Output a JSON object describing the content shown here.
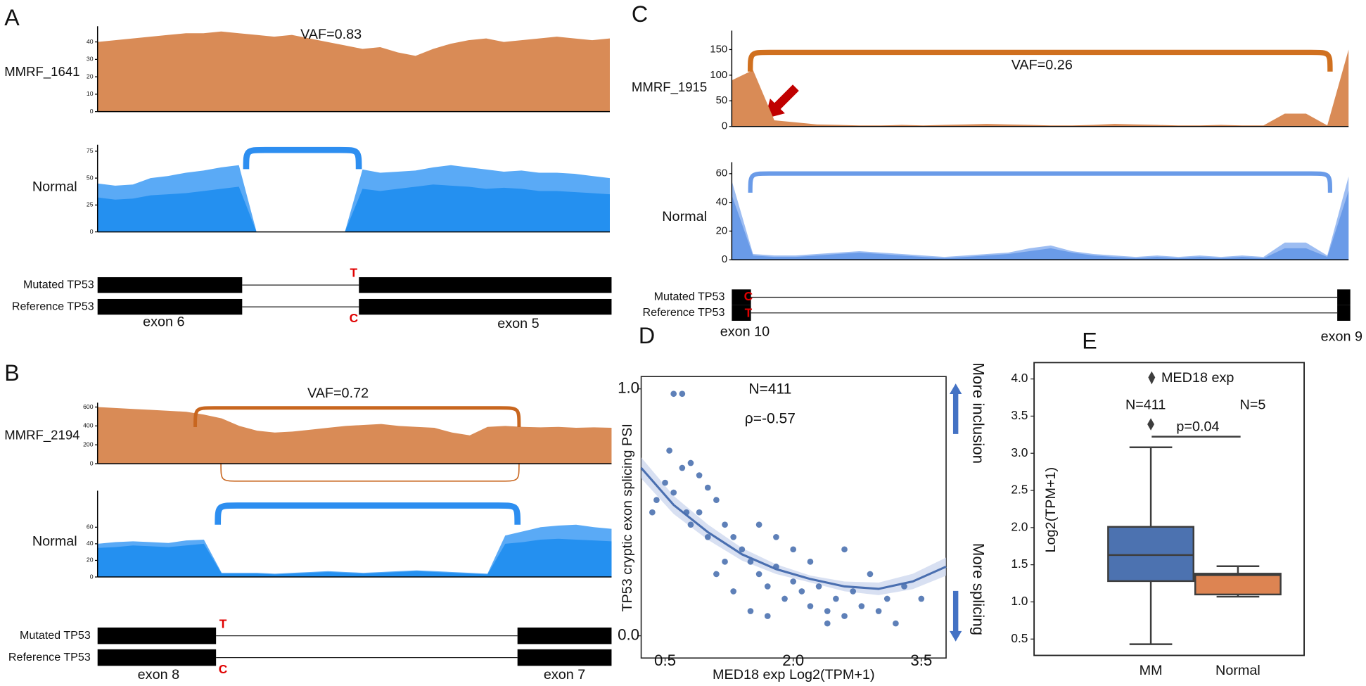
{
  "chart_data": [
    {
      "type": "area",
      "panel": "A",
      "name": "MMRF_1641",
      "annotation": "VAF=0.83",
      "ylim": [
        0,
        49
      ],
      "yticks": [
        0,
        10,
        20,
        30,
        40
      ],
      "series": [
        {
          "color": "#d98b56",
          "values": [
            40,
            41,
            42,
            43,
            44,
            45,
            45,
            46,
            45,
            44,
            43,
            44,
            42,
            40,
            38,
            36,
            37,
            34,
            32,
            36,
            39,
            41,
            42,
            40,
            41,
            42,
            43,
            42,
            41,
            42
          ]
        }
      ]
    },
    {
      "type": "area",
      "name": "Normal",
      "ylim": [
        0,
        81
      ],
      "yticks": [
        0,
        25,
        50,
        75
      ],
      "series": [
        {
          "color": "#5aaaf6",
          "values": [
            45,
            43,
            44,
            50,
            52,
            55,
            57,
            60,
            62,
            0,
            0,
            0,
            0,
            0,
            0,
            58,
            55,
            56,
            57,
            60,
            62,
            60,
            58,
            56,
            57,
            55,
            55,
            54,
            52,
            50
          ]
        },
        {
          "color": "#2490f0",
          "values": [
            32,
            30,
            31,
            34,
            35,
            36,
            38,
            40,
            42,
            0,
            0,
            0,
            0,
            0,
            0,
            40,
            38,
            40,
            42,
            44,
            43,
            42,
            40,
            41,
            40,
            38,
            38,
            37,
            36,
            35
          ]
        }
      ]
    },
    {
      "type": "area",
      "panel": "B",
      "name": "MMRF_2194",
      "annotation": "VAF=0.72",
      "ylim": [
        0,
        646
      ],
      "yticks": [
        0,
        200,
        400,
        600
      ],
      "series": [
        {
          "color": "#d98b56",
          "values": [
            600,
            590,
            580,
            570,
            560,
            550,
            520,
            480,
            400,
            350,
            330,
            340,
            360,
            380,
            400,
            410,
            420,
            400,
            390,
            380,
            330,
            300,
            390,
            400,
            390,
            385,
            390,
            380,
            385,
            380
          ]
        }
      ]
    },
    {
      "type": "area",
      "name": "Normal",
      "ylim": [
        0,
        104
      ],
      "yticks": [
        0,
        20,
        40,
        60
      ],
      "series": [
        {
          "color": "#5aaaf6",
          "values": [
            40,
            42,
            43,
            42,
            41,
            44,
            45,
            5,
            5,
            5,
            4,
            5,
            6,
            7,
            6,
            5,
            6,
            7,
            8,
            7,
            6,
            5,
            4,
            50,
            55,
            60,
            62,
            63,
            60,
            58
          ]
        },
        {
          "color": "#2490f0",
          "values": [
            35,
            36,
            38,
            37,
            36,
            38,
            40,
            4,
            4,
            4,
            3,
            4,
            5,
            6,
            5,
            4,
            5,
            6,
            7,
            6,
            5,
            4,
            3,
            40,
            42,
            45,
            46,
            45,
            44,
            43
          ]
        }
      ]
    },
    {
      "type": "area",
      "panel": "C",
      "name": "MMRF_1915",
      "annotation": "VAF=0.26",
      "ylim": [
        0,
        187
      ],
      "yticks": [
        0,
        50,
        100,
        150
      ],
      "series": [
        {
          "color": "#d98b56",
          "values": [
            90,
            110,
            12,
            8,
            4,
            3,
            2,
            2,
            3,
            2,
            3,
            4,
            5,
            4,
            3,
            2,
            2,
            3,
            5,
            4,
            3,
            2,
            2,
            3,
            2,
            2,
            25,
            25,
            2,
            150
          ]
        }
      ]
    },
    {
      "type": "area",
      "name": "Normal",
      "ylim": [
        0,
        68
      ],
      "yticks": [
        0,
        20,
        40,
        60
      ],
      "series": [
        {
          "color": "#9dbdf2",
          "values": [
            55,
            4,
            3,
            3,
            4,
            5,
            6,
            5,
            4,
            3,
            2,
            3,
            4,
            5,
            8,
            10,
            6,
            4,
            3,
            2,
            3,
            2,
            3,
            2,
            3,
            2,
            12,
            12,
            3,
            58
          ]
        },
        {
          "color": "#6a9be8",
          "values": [
            45,
            3,
            2,
            2,
            3,
            4,
            5,
            4,
            3,
            2,
            1,
            2,
            3,
            4,
            6,
            8,
            5,
            3,
            2,
            1,
            2,
            1,
            2,
            1,
            2,
            1,
            8,
            8,
            2,
            48
          ]
        }
      ]
    },
    {
      "type": "scatter",
      "panel": "D",
      "color": "#4c72b0",
      "x_label": "MED18 exp Log2(TPM+1)",
      "y_label": "TP53 cryptic exon splicing PSI",
      "annotations": [
        "N=411",
        "ρ=-0.57"
      ],
      "arrow_labels": [
        "More inclusion",
        "More splicing"
      ],
      "xlim": [
        0.22,
        3.79
      ],
      "ylim": [
        -0.09,
        1.05
      ],
      "xticks": [
        0.5,
        {
          "value": 2,
          "label": "2.0"
        },
        3.5
      ],
      "yticks": [
        {
          "value": 0,
          "label": "0.0"
        },
        {
          "value": 1,
          "label": "1.0"
        }
      ],
      "x": [
        0.6,
        0.7,
        0.55,
        0.7,
        0.8,
        0.9,
        1.0,
        0.6,
        0.75,
        0.9,
        1.1,
        1.2,
        1.0,
        0.8,
        1.3,
        1.4,
        1.5,
        1.2,
        1.6,
        1.7,
        1.8,
        1.9,
        2.0,
        2.1,
        2.2,
        2.3,
        2.4,
        2.5,
        2.6,
        2.7,
        2.8,
        2.9,
        3.0,
        3.1,
        3.2,
        3.3,
        1.5,
        1.3,
        1.1,
        0.4,
        0.35,
        0.5,
        1.6,
        1.8,
        2.0,
        2.2,
        2.4,
        1.7,
        2.6,
        3.5
      ],
      "y": [
        0.98,
        0.98,
        0.75,
        0.68,
        0.7,
        0.65,
        0.6,
        0.58,
        0.5,
        0.5,
        0.55,
        0.45,
        0.4,
        0.45,
        0.4,
        0.35,
        0.3,
        0.3,
        0.25,
        0.2,
        0.28,
        0.15,
        0.22,
        0.18,
        0.12,
        0.2,
        0.1,
        0.15,
        0.08,
        0.18,
        0.12,
        0.25,
        0.1,
        0.15,
        0.05,
        0.2,
        0.1,
        0.18,
        0.25,
        0.55,
        0.5,
        0.62,
        0.45,
        0.4,
        0.35,
        0.3,
        0.05,
        0.08,
        0.35,
        0.15
      ],
      "fit": {
        "x": [
          0.22,
          0.6,
          1.0,
          1.4,
          1.8,
          2.2,
          2.6,
          3.0,
          3.4,
          3.79
        ],
        "y": [
          0.68,
          0.53,
          0.42,
          0.33,
          0.27,
          0.23,
          0.2,
          0.19,
          0.22,
          0.28
        ]
      }
    },
    {
      "type": "box",
      "panel": "E",
      "y_label": "Log2(TPM+1)",
      "legend": "MED18 exp",
      "annotations": [
        "N=411",
        "N=5",
        "p=0.04"
      ],
      "categories": [
        "MM",
        "Normal"
      ],
      "ylim": [
        0.28,
        4.22
      ],
      "yticks": [
        0.5,
        {
          "value": 1,
          "label": "1.0"
        },
        1.5,
        {
          "value": 2,
          "label": "2.0"
        },
        2.5,
        {
          "value": 3,
          "label": "3.0"
        },
        3.5,
        {
          "value": 4,
          "label": "4.0"
        }
      ],
      "series": [
        {
          "color": "#4c72b0",
          "whislo": 0.43,
          "q1": 1.28,
          "med": 1.63,
          "q3": 2.01,
          "whishi": 3.08,
          "fliers": [
            3.39
          ]
        },
        {
          "color": "#dd8452",
          "whislo": 1.07,
          "q1": 1.1,
          "med": 1.36,
          "q3": 1.38,
          "whishi": 1.48,
          "fliers": []
        }
      ]
    }
  ],
  "gene_models": [
    {
      "mutated": "Mutated TP53",
      "reference": "Reference TP53",
      "mut_base": "T",
      "ref_base": "C",
      "exons": [
        "exon 6",
        "exon 5"
      ]
    },
    {
      "mutated": "Mutated TP53",
      "reference": "Reference TP53",
      "mut_base": "T",
      "ref_base": "C",
      "exons": [
        "exon 8",
        "exon 7"
      ]
    },
    {
      "mutated": "Mutated TP53",
      "reference": "Reference TP53",
      "mut_base": "C",
      "ref_base": "T",
      "exons": [
        "exon 10",
        "exon 9"
      ]
    }
  ]
}
